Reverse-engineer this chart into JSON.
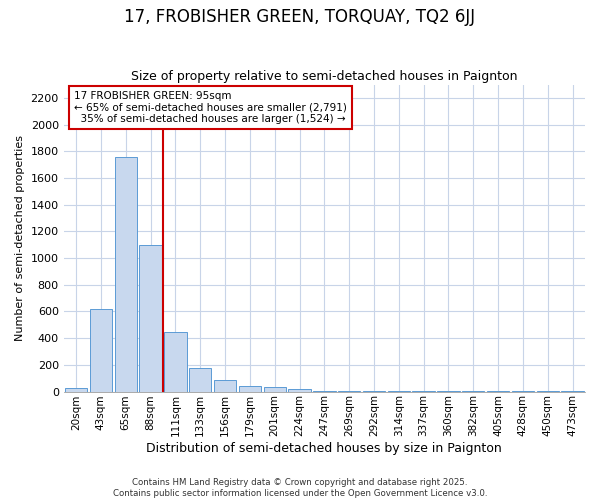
{
  "title1": "17, FROBISHER GREEN, TORQUAY, TQ2 6JJ",
  "title2": "Size of property relative to semi-detached houses in Paignton",
  "xlabel": "Distribution of semi-detached houses by size in Paignton",
  "ylabel": "Number of semi-detached properties",
  "categories": [
    "20sqm",
    "43sqm",
    "65sqm",
    "88sqm",
    "111sqm",
    "133sqm",
    "156sqm",
    "179sqm",
    "201sqm",
    "224sqm",
    "247sqm",
    "269sqm",
    "292sqm",
    "314sqm",
    "337sqm",
    "360sqm",
    "382sqm",
    "405sqm",
    "428sqm",
    "450sqm",
    "473sqm"
  ],
  "values": [
    30,
    615,
    1760,
    1100,
    450,
    180,
    90,
    45,
    35,
    18,
    5,
    3,
    2,
    2,
    1,
    1,
    1,
    1,
    1,
    1,
    1
  ],
  "bar_color": "#c8d8ee",
  "bar_edge_color": "#5b9bd5",
  "background_color": "#ffffff",
  "grid_color": "#c8d4e8",
  "vline_x": 3.5,
  "vline_color": "#cc0000",
  "annotation_text": "17 FROBISHER GREEN: 95sqm\n← 65% of semi-detached houses are smaller (2,791)\n  35% of semi-detached houses are larger (1,524) →",
  "annotation_box_color": "#ffffff",
  "annotation_box_edge": "#cc0000",
  "ylim": [
    0,
    2300
  ],
  "yticks": [
    0,
    200,
    400,
    600,
    800,
    1000,
    1200,
    1400,
    1600,
    1800,
    2000,
    2200
  ],
  "footer1": "Contains HM Land Registry data © Crown copyright and database right 2025.",
  "footer2": "Contains public sector information licensed under the Open Government Licence v3.0.",
  "title1_fontsize": 12,
  "title2_fontsize": 9,
  "xlabel_fontsize": 9,
  "ylabel_fontsize": 8,
  "bar_width": 0.9
}
